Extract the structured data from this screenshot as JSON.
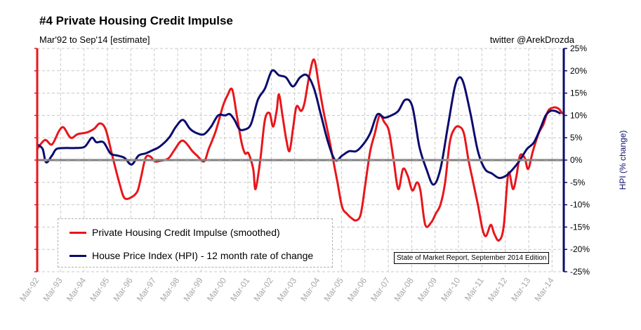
{
  "title": "#4 Private Housing Credit Impulse",
  "subtitle": "Mar'92 to Sep'14 [estimate]",
  "credit": "twitter @ArekDrozda",
  "edition_note": "State of Market Report, September 2014 Edition",
  "colors": {
    "red": "#e8161b",
    "navy": "#0b0b6e",
    "grid": "#c8c8c8",
    "zero": "#808080"
  },
  "chart_data": {
    "type": "line",
    "title": "#4 Private Housing Credit Impulse",
    "x_labels": [
      "Mar-92",
      "Mar-93",
      "Mar-94",
      "Mar-95",
      "Mar-96",
      "Mar-97",
      "Mar-98",
      "Mar-99",
      "Mar-00",
      "Mar-01",
      "Mar-02",
      "Mar-03",
      "Mar-04",
      "Mar-05",
      "Mar-06",
      "Mar-07",
      "Mar-08",
      "Mar-09",
      "Mar-10",
      "Mar-11",
      "Mar-12",
      "Mar-13",
      "Mar-14"
    ],
    "x_range": [
      1992.17,
      2014.67
    ],
    "y_right": {
      "label": "HPI (% change)",
      "ticks": [
        "25%",
        "20%",
        "15%",
        "10%",
        "5%",
        "0%",
        "-5%",
        "-10%",
        "-15%",
        "-20%",
        "-25%"
      ],
      "range": [
        -25,
        25
      ]
    },
    "y_left_range": [
      -25,
      25
    ],
    "grid": true,
    "legend_position": "bottom-left",
    "series": [
      {
        "name": "Private Housing Credit Impulse (smoothed)",
        "color": "#e8161b",
        "axis": "left",
        "points": [
          [
            1992.17,
            2.5
          ],
          [
            1992.5,
            4.5
          ],
          [
            1992.8,
            3.5
          ],
          [
            1993.1,
            6.5
          ],
          [
            1993.3,
            7.3
          ],
          [
            1993.6,
            5.0
          ],
          [
            1993.9,
            5.8
          ],
          [
            1994.3,
            6.2
          ],
          [
            1994.6,
            7.0
          ],
          [
            1994.85,
            8.2
          ],
          [
            1995.1,
            6.8
          ],
          [
            1995.4,
            0.5
          ],
          [
            1995.7,
            -5.5
          ],
          [
            1995.9,
            -8.5
          ],
          [
            1996.2,
            -8.3
          ],
          [
            1996.45,
            -7.0
          ],
          [
            1996.6,
            -4.0
          ],
          [
            1996.8,
            0.5
          ],
          [
            1997.0,
            0.8
          ],
          [
            1997.2,
            -0.3
          ],
          [
            1997.4,
            -0.2
          ],
          [
            1997.6,
            0.0
          ],
          [
            1997.8,
            0.5
          ],
          [
            1998.0,
            2.0
          ],
          [
            1998.3,
            4.2
          ],
          [
            1998.5,
            4.0
          ],
          [
            1998.8,
            2.0
          ],
          [
            1999.0,
            1.0
          ],
          [
            1999.3,
            -0.3
          ],
          [
            1999.5,
            2.5
          ],
          [
            1999.8,
            6.5
          ],
          [
            2000.1,
            12.0
          ],
          [
            2000.3,
            14.5
          ],
          [
            2000.5,
            15.8
          ],
          [
            2000.7,
            10.0
          ],
          [
            2000.9,
            4.0
          ],
          [
            2001.05,
            1.5
          ],
          [
            2001.2,
            1.5
          ],
          [
            2001.4,
            -2.0
          ],
          [
            2001.5,
            -6.5
          ],
          [
            2001.7,
            0.0
          ],
          [
            2001.9,
            9.0
          ],
          [
            2002.1,
            10.5
          ],
          [
            2002.25,
            7.5
          ],
          [
            2002.4,
            11.0
          ],
          [
            2002.5,
            14.7
          ],
          [
            2002.65,
            10.0
          ],
          [
            2002.8,
            5.0
          ],
          [
            2002.95,
            2.0
          ],
          [
            2003.1,
            7.0
          ],
          [
            2003.25,
            12.0
          ],
          [
            2003.45,
            11.0
          ],
          [
            2003.6,
            13.0
          ],
          [
            2003.8,
            19.0
          ],
          [
            2004.0,
            22.5
          ],
          [
            2004.2,
            17.0
          ],
          [
            2004.4,
            11.0
          ],
          [
            2004.6,
            6.0
          ],
          [
            2004.8,
            0.5
          ],
          [
            2005.0,
            -5.0
          ],
          [
            2005.2,
            -10.5
          ],
          [
            2005.4,
            -12.0
          ],
          [
            2005.6,
            -13.0
          ],
          [
            2005.8,
            -13.5
          ],
          [
            2006.0,
            -12.0
          ],
          [
            2006.2,
            -5.0
          ],
          [
            2006.4,
            2.0
          ],
          [
            2006.6,
            6.0
          ],
          [
            2006.8,
            10.0
          ],
          [
            2007.0,
            8.5
          ],
          [
            2007.2,
            6.5
          ],
          [
            2007.4,
            0.0
          ],
          [
            2007.6,
            -6.5
          ],
          [
            2007.8,
            -2.0
          ],
          [
            2008.0,
            -3.5
          ],
          [
            2008.2,
            -6.8
          ],
          [
            2008.4,
            -5.0
          ],
          [
            2008.55,
            -7.0
          ],
          [
            2008.75,
            -14.5
          ],
          [
            2009.0,
            -14.0
          ],
          [
            2009.2,
            -12.0
          ],
          [
            2009.4,
            -10.0
          ],
          [
            2009.6,
            -5.0
          ],
          [
            2009.8,
            4.0
          ],
          [
            2010.0,
            7.0
          ],
          [
            2010.2,
            7.5
          ],
          [
            2010.4,
            6.0
          ],
          [
            2010.6,
            0.0
          ],
          [
            2010.8,
            -5.0
          ],
          [
            2011.0,
            -10.0
          ],
          [
            2011.2,
            -15.5
          ],
          [
            2011.35,
            -17.0
          ],
          [
            2011.55,
            -14.5
          ],
          [
            2011.7,
            -16.5
          ],
          [
            2011.9,
            -18.0
          ],
          [
            2012.1,
            -15.0
          ],
          [
            2012.3,
            -3.0
          ],
          [
            2012.5,
            -6.5
          ],
          [
            2012.65,
            -3.5
          ],
          [
            2012.8,
            1.0
          ],
          [
            2013.0,
            0.5
          ],
          [
            2013.15,
            -2.0
          ],
          [
            2013.35,
            2.0
          ],
          [
            2013.6,
            6.0
          ],
          [
            2013.8,
            8.0
          ],
          [
            2014.0,
            11.0
          ],
          [
            2014.25,
            11.8
          ],
          [
            2014.45,
            11.5
          ],
          [
            2014.6,
            10.5
          ]
        ]
      },
      {
        "name": "House Price Index (HPI) - 12 month rate of change",
        "color": "#0b0b6e",
        "axis": "right",
        "points": [
          [
            1992.17,
            3.5
          ],
          [
            1992.4,
            2.5
          ],
          [
            1992.55,
            -0.5
          ],
          [
            1992.8,
            1.0
          ],
          [
            1993.0,
            2.5
          ],
          [
            1993.4,
            2.7
          ],
          [
            1993.8,
            2.7
          ],
          [
            1994.2,
            3.0
          ],
          [
            1994.5,
            5.0
          ],
          [
            1994.7,
            4.0
          ],
          [
            1995.0,
            4.0
          ],
          [
            1995.3,
            1.5
          ],
          [
            1995.6,
            1.0
          ],
          [
            1995.9,
            0.5
          ],
          [
            1996.2,
            -1.0
          ],
          [
            1996.5,
            1.0
          ],
          [
            1996.8,
            1.5
          ],
          [
            1997.1,
            2.2
          ],
          [
            1997.4,
            3.0
          ],
          [
            1997.8,
            5.0
          ],
          [
            1998.1,
            7.5
          ],
          [
            1998.4,
            9.0
          ],
          [
            1998.7,
            7.0
          ],
          [
            1999.0,
            6.0
          ],
          [
            1999.3,
            5.8
          ],
          [
            1999.6,
            7.5
          ],
          [
            1999.9,
            10.0
          ],
          [
            2000.2,
            10.0
          ],
          [
            2000.4,
            10.3
          ],
          [
            2000.6,
            9.0
          ],
          [
            2000.8,
            7.0
          ],
          [
            2001.0,
            6.8
          ],
          [
            2001.3,
            8.0
          ],
          [
            2001.6,
            13.5
          ],
          [
            2001.9,
            16.0
          ],
          [
            2002.2,
            20.0
          ],
          [
            2002.5,
            19.0
          ],
          [
            2002.8,
            18.5
          ],
          [
            2003.1,
            16.5
          ],
          [
            2003.4,
            18.5
          ],
          [
            2003.7,
            19.0
          ],
          [
            2004.0,
            16.0
          ],
          [
            2004.3,
            10.0
          ],
          [
            2004.6,
            4.0
          ],
          [
            2004.9,
            0.0
          ],
          [
            2005.2,
            1.0
          ],
          [
            2005.5,
            2.0
          ],
          [
            2005.8,
            2.0
          ],
          [
            2006.1,
            3.5
          ],
          [
            2006.4,
            6.0
          ],
          [
            2006.7,
            10.2
          ],
          [
            2007.0,
            9.5
          ],
          [
            2007.3,
            10.0
          ],
          [
            2007.6,
            11.0
          ],
          [
            2007.9,
            13.5
          ],
          [
            2008.2,
            12.0
          ],
          [
            2008.5,
            3.0
          ],
          [
            2008.8,
            -2.0
          ],
          [
            2009.1,
            -5.5
          ],
          [
            2009.4,
            -2.0
          ],
          [
            2009.7,
            7.0
          ],
          [
            2010.0,
            16.0
          ],
          [
            2010.2,
            18.5
          ],
          [
            2010.4,
            17.0
          ],
          [
            2010.7,
            10.0
          ],
          [
            2011.0,
            2.0
          ],
          [
            2011.3,
            -2.0
          ],
          [
            2011.6,
            -3.0
          ],
          [
            2011.9,
            -4.0
          ],
          [
            2012.2,
            -3.5
          ],
          [
            2012.5,
            -2.0
          ],
          [
            2012.8,
            0.0
          ],
          [
            2013.1,
            2.5
          ],
          [
            2013.4,
            4.0
          ],
          [
            2013.7,
            7.5
          ],
          [
            2013.9,
            10.0
          ],
          [
            2014.1,
            11.0
          ],
          [
            2014.3,
            11.0
          ],
          [
            2014.5,
            10.5
          ]
        ]
      }
    ]
  }
}
